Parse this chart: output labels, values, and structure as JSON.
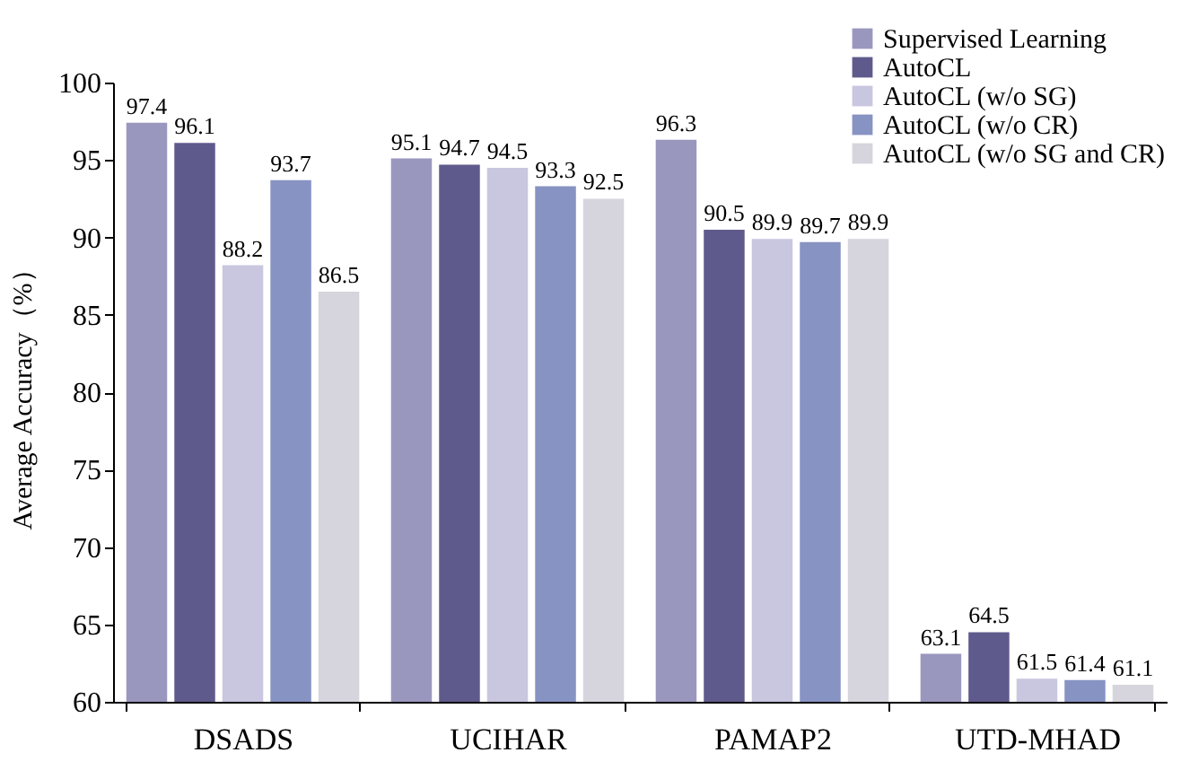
{
  "chart_data": {
    "type": "bar",
    "ylabel": "Average Accuracy（%）",
    "categories": [
      "DSADS",
      "UCIHAR",
      "PAMAP2",
      "UTD-MHAD"
    ],
    "series": [
      {
        "name": "Supervised Learning",
        "color": "#9a97bf",
        "values": [
          97.4,
          95.1,
          96.3,
          63.1
        ]
      },
      {
        "name": "AutoCL",
        "color": "#5f5a8c",
        "values": [
          96.1,
          94.7,
          90.5,
          64.5
        ]
      },
      {
        "name": "AutoCL (w/o SG)",
        "color": "#c9c6df",
        "values": [
          88.2,
          94.5,
          89.9,
          61.5
        ]
      },
      {
        "name": "AutoCL (w/o CR)",
        "color": "#8793c2",
        "values": [
          93.7,
          93.3,
          89.7,
          61.4
        ]
      },
      {
        "name": "AutoCL (w/o SG and CR)",
        "color": "#d6d5dd",
        "values": [
          86.5,
          92.5,
          89.9,
          61.1
        ]
      }
    ],
    "ylim": [
      60,
      100
    ],
    "yticks": [
      60,
      65,
      70,
      75,
      80,
      85,
      90,
      95,
      100
    ],
    "grid": false,
    "legend": "top right",
    "data_labels": true
  }
}
